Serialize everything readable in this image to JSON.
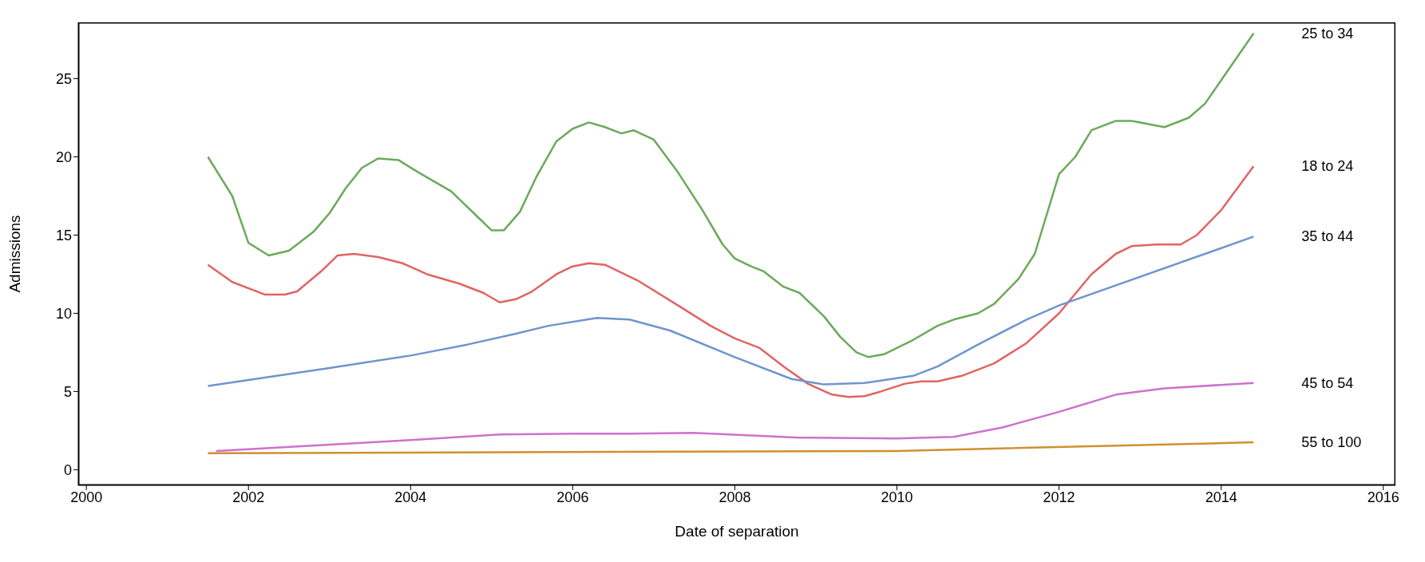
{
  "chart_data": {
    "type": "line",
    "xlabel": "Date of separation",
    "ylabel": "Admissions",
    "xlim": [
      1999.9,
      2016.15
    ],
    "xticks": [
      2000,
      2002,
      2004,
      2006,
      2008,
      2010,
      2012,
      2014,
      2016
    ],
    "ylim": [
      -1.0,
      28.6
    ],
    "yticks": [
      0,
      5,
      10,
      15,
      20,
      25
    ],
    "marker": "none",
    "line_style": "solid",
    "series": [
      {
        "name": "25 to 34",
        "color": "#6aaa5a",
        "x": [
          2001.5,
          2001.8,
          2002.0,
          2002.25,
          2002.5,
          2002.8,
          2003.0,
          2003.2,
          2003.4,
          2003.6,
          2003.85,
          2004.1,
          2004.5,
          2004.8,
          2005.0,
          2005.15,
          2005.35,
          2005.55,
          2005.8,
          2006.0,
          2006.2,
          2006.4,
          2006.6,
          2006.75,
          2007.0,
          2007.3,
          2007.6,
          2007.85,
          2008.0,
          2008.2,
          2008.35,
          2008.6,
          2008.8,
          2009.1,
          2009.3,
          2009.5,
          2009.65,
          2009.85,
          2010.2,
          2010.5,
          2010.7,
          2011.0,
          2011.2,
          2011.5,
          2011.7,
          2012.0,
          2012.2,
          2012.4,
          2012.7,
          2012.9,
          2013.3,
          2013.6,
          2013.8,
          2014.0,
          2014.4
        ],
        "values": [
          20,
          17.5,
          14.5,
          13.7,
          14.0,
          15.2,
          16.4,
          18,
          19.3,
          19.9,
          19.8,
          19.0,
          17.8,
          16.3,
          15.3,
          15.3,
          16.5,
          18.7,
          21.0,
          21.8,
          22.2,
          21.9,
          21.5,
          21.7,
          21.1,
          19.0,
          16.6,
          14.4,
          13.5,
          13.0,
          12.7,
          11.7,
          11.3,
          9.8,
          8.5,
          7.5,
          7.2,
          7.4,
          8.3,
          9.2,
          9.6,
          10.0,
          10.6,
          12.2,
          13.8,
          18.9,
          20.0,
          21.7,
          22.3,
          22.3,
          21.9,
          22.5,
          23.4,
          24.9,
          27.9
        ]
      },
      {
        "name": "18 to 24",
        "color": "#e06464",
        "x": [
          2001.5,
          2001.8,
          2002.2,
          2002.45,
          2002.6,
          2002.9,
          2003.1,
          2003.3,
          2003.6,
          2003.9,
          2004.2,
          2004.6,
          2004.9,
          2005.1,
          2005.3,
          2005.5,
          2005.8,
          2006.0,
          2006.2,
          2006.4,
          2006.8,
          2007.3,
          2007.7,
          2008.0,
          2008.3,
          2008.6,
          2008.9,
          2009.2,
          2009.4,
          2009.6,
          2009.8,
          2010.1,
          2010.3,
          2010.5,
          2010.8,
          2011.2,
          2011.6,
          2012.0,
          2012.4,
          2012.7,
          2012.9,
          2013.2,
          2013.5,
          2013.7,
          2014.0,
          2014.4
        ],
        "values": [
          13.1,
          12.0,
          11.2,
          11.2,
          11.4,
          12.7,
          13.7,
          13.8,
          13.6,
          13.2,
          12.5,
          11.9,
          11.3,
          10.7,
          10.9,
          11.4,
          12.5,
          13.0,
          13.2,
          13.1,
          12.1,
          10.5,
          9.2,
          8.4,
          7.8,
          6.6,
          5.5,
          4.8,
          4.65,
          4.7,
          5.0,
          5.5,
          5.65,
          5.65,
          6.0,
          6.8,
          8.1,
          10.0,
          12.5,
          13.8,
          14.3,
          14.4,
          14.4,
          15.0,
          16.6,
          19.4
        ]
      },
      {
        "name": "35 to 44",
        "color": "#6f95cc",
        "x": [
          2001.5,
          2003.0,
          2004.0,
          2004.7,
          2005.3,
          2005.7,
          2006.3,
          2006.7,
          2007.2,
          2008.0,
          2008.7,
          2009.1,
          2009.6,
          2010.2,
          2010.5,
          2011.0,
          2011.6,
          2012.0,
          2014.4
        ],
        "values": [
          5.35,
          6.5,
          7.3,
          8.0,
          8.7,
          9.2,
          9.7,
          9.6,
          8.9,
          7.2,
          5.8,
          5.45,
          5.55,
          6.0,
          6.6,
          8.0,
          9.6,
          10.5,
          14.9
        ]
      },
      {
        "name": "45 to 54",
        "color": "#cc72cc",
        "x": [
          2001.6,
          2003.0,
          2004.0,
          2005.1,
          2006.0,
          2006.7,
          2007.5,
          2008.8,
          2010.0,
          2010.7,
          2011.3,
          2012.0,
          2012.7,
          2013.3,
          2014.4
        ],
        "values": [
          1.2,
          1.6,
          1.9,
          2.25,
          2.3,
          2.3,
          2.35,
          2.05,
          2.0,
          2.1,
          2.7,
          3.7,
          4.8,
          5.2,
          5.55
        ]
      },
      {
        "name": "55 to 100",
        "color": "#cf9030",
        "x": [
          2001.5,
          2010.0,
          2014.4
        ],
        "values": [
          1.05,
          1.2,
          1.75
        ]
      }
    ]
  }
}
